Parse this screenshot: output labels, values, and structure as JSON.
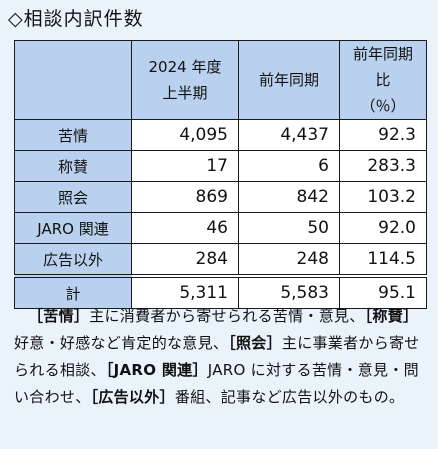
{
  "heading": "◇相談内訳件数",
  "table": {
    "headers": {
      "corner": "",
      "col1_line1": "2024 年度",
      "col1_line2": "上半期",
      "col2": "前年同期",
      "col3_line1": "前年同期比",
      "col3_line2": "（％）"
    },
    "rows": [
      {
        "label": "苦情",
        "current": "4,095",
        "prev": "4,437",
        "ratio": "92.3"
      },
      {
        "label": "称賛",
        "current": "17",
        "prev": "6",
        "ratio": "283.3"
      },
      {
        "label": "照会",
        "current": "869",
        "prev": "842",
        "ratio": "103.2"
      },
      {
        "label": "JARO 関連",
        "current": "46",
        "prev": "50",
        "ratio": "92.0"
      },
      {
        "label": "広告以外",
        "current": "284",
        "prev": "248",
        "ratio": "114.5"
      }
    ],
    "total": {
      "label": "計",
      "current": "5,311",
      "prev": "5,583",
      "ratio": "95.1"
    }
  },
  "note": {
    "t1": "［苦情］",
    "d1": "主に消費者から寄せられる苦情・意見、",
    "t2": "［称賛］",
    "d2": "好意・好感など肯定的な意見、",
    "t3": "［照会］",
    "d3": "主に事業者から寄せられる相談、",
    "t4": "［JARO 関連］",
    "d4": "JARO に対する苦情・意見・問い合わせ、",
    "t5": "［広告以外］",
    "d5": "番組、記事など広告以外のもの。"
  }
}
